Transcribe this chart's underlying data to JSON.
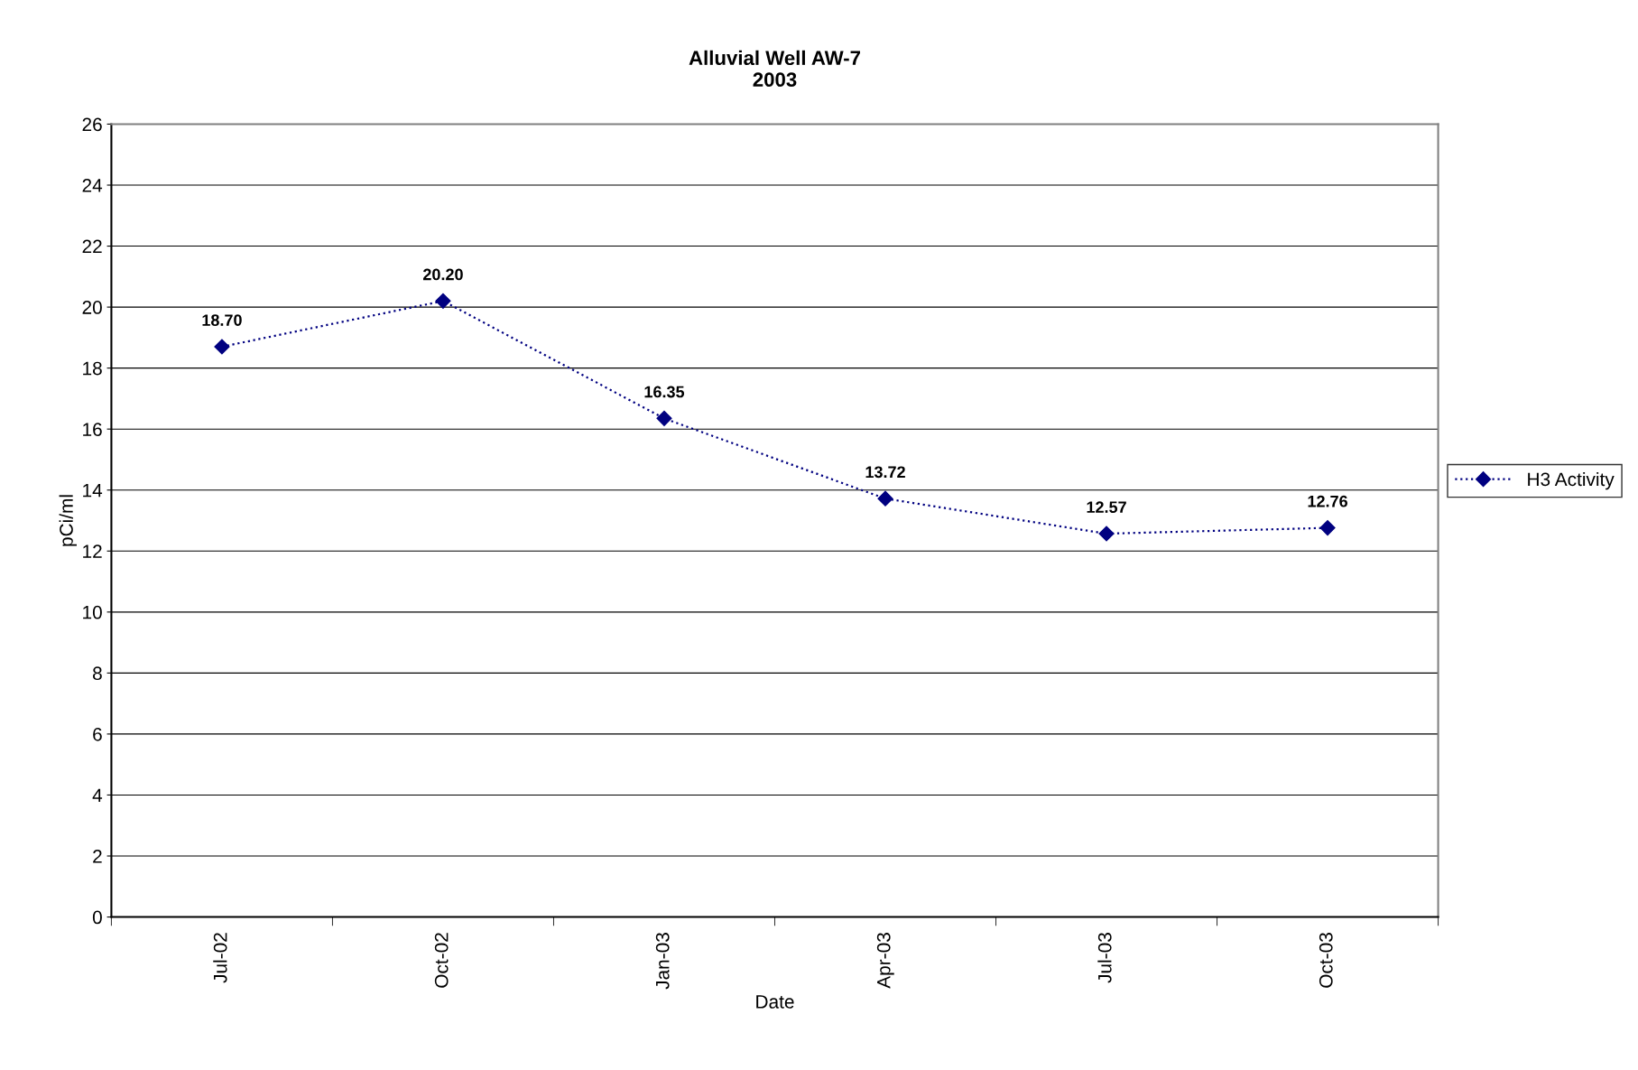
{
  "chart_data": {
    "type": "line",
    "title": "Alluvial Well AW-7\n2003",
    "xlabel": "Date",
    "ylabel": "pCi/ml",
    "categories": [
      "Jul-02",
      "Oct-02",
      "Jan-03",
      "Apr-03",
      "Jul-03",
      "Oct-03"
    ],
    "series": [
      {
        "name": "H3 Activity",
        "color": "#000080",
        "values": [
          18.7,
          20.2,
          16.35,
          13.72,
          12.57,
          12.76
        ]
      }
    ],
    "value_labels": [
      "18.70",
      "20.20",
      "16.35",
      "13.72",
      "12.57",
      "12.76"
    ],
    "ylim": [
      0,
      26
    ],
    "yticks": [
      0,
      2,
      4,
      6,
      8,
      10,
      12,
      14,
      16,
      18,
      20,
      22,
      24,
      26
    ],
    "grid": "y",
    "legend": "right",
    "marker": "diamond",
    "line_style": "dotted"
  }
}
